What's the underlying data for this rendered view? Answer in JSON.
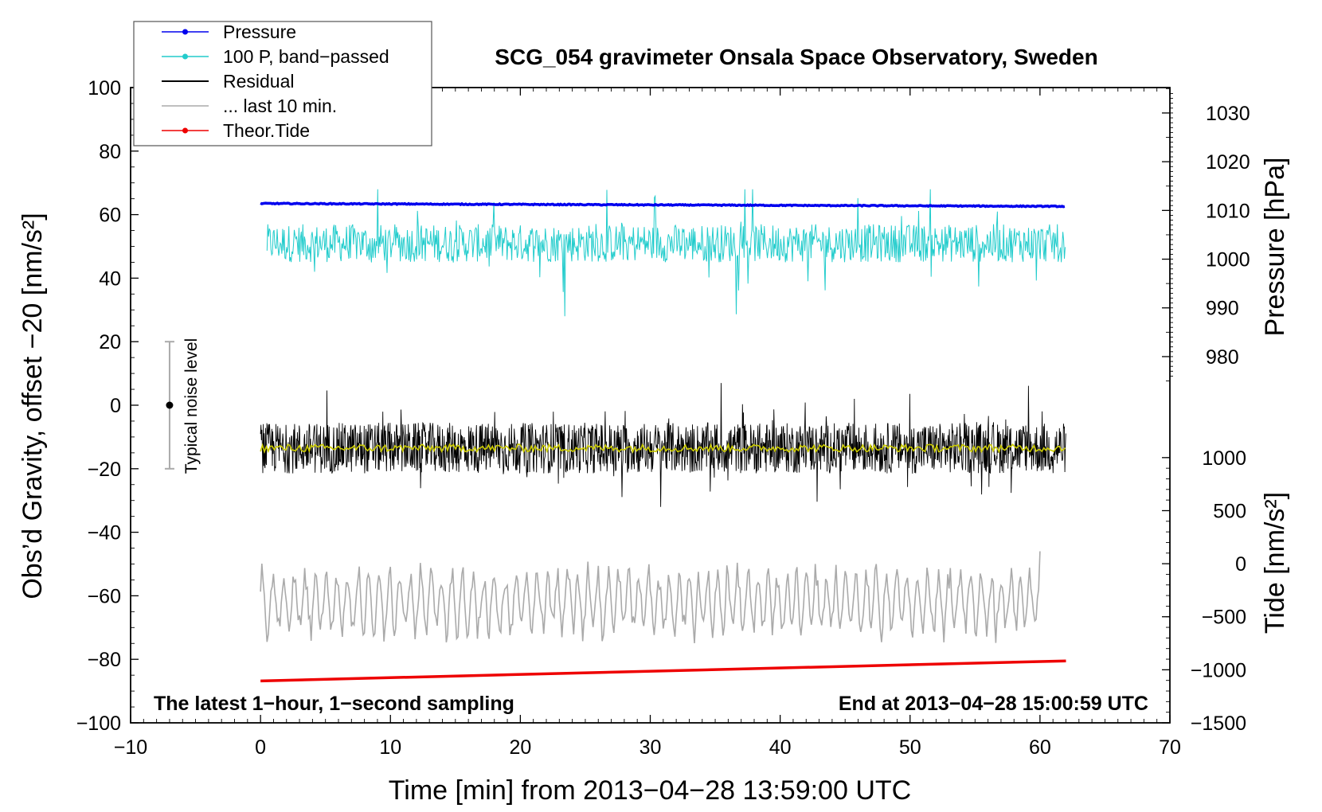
{
  "chart_data": {
    "type": "line",
    "title": "SCG_054 gravimeter Onsala Space Observatory, Sweden",
    "xlabel": "Time [min] from 2013−04−28 13:59:00 UTC",
    "ylabel_left": "Obs’d Gravity, offset −20 [nm/s²]",
    "ylabel_right_pressure": "Pressure [hPa]",
    "ylabel_right_tide": "Tide [nm/s²]",
    "xlim": [
      -10,
      70
    ],
    "ylim": [
      -100,
      100
    ],
    "x_ticks": [
      "−10",
      "0",
      "10",
      "20",
      "30",
      "40",
      "50",
      "60",
      "70"
    ],
    "x_tick_values": [
      -10,
      0,
      10,
      20,
      30,
      40,
      50,
      60,
      70
    ],
    "y_ticks": [
      "100",
      "80",
      "60",
      "40",
      "20",
      "0",
      "−20",
      "−40",
      "−60",
      "−80",
      "−100"
    ],
    "y_tick_values": [
      100,
      80,
      60,
      40,
      20,
      0,
      -20,
      -40,
      -60,
      -80,
      -100
    ],
    "pressure_ticks": [
      "1030",
      "1020",
      "1010",
      "1000",
      "990",
      "980"
    ],
    "pressure_tick_values": [
      1030,
      1020,
      1010,
      1000,
      990,
      980
    ],
    "pressure_axis_map": {
      "p1": 1030,
      "y1": 92,
      "p2": 980,
      "y2": 15.3
    },
    "tide_ticks": [
      "1000",
      "500",
      "0",
      "−500",
      "−1000",
      "−1500"
    ],
    "tide_tick_values": [
      1000,
      500,
      0,
      -500,
      -1000,
      -1500
    ],
    "tide_axis_map": {
      "t1": 1000,
      "y1": -16.5,
      "t2": -1500,
      "y2": -100
    },
    "legend": [
      {
        "name": "Pressure",
        "color": "#0000ee",
        "marker": true
      },
      {
        "name": "100 P, band−passed",
        "color": "#22cccc",
        "marker": true
      },
      {
        "name": "Residual",
        "color": "#000000",
        "marker": false
      },
      {
        "name": "... last 10 min.",
        "color": "#aaaaaa",
        "marker": false
      },
      {
        "name": "Theor.Tide",
        "color": "#ee0000",
        "marker": true
      }
    ],
    "legend_position": "top-left",
    "annotation_left": "The latest 1−hour, 1−second sampling",
    "annotation_right": "End at 2013−04−28 15:00:59 UTC",
    "noise_bar_label": "Typical noise level",
    "noise_bar": {
      "x": -7,
      "center": 0,
      "low": -20,
      "high": 20
    },
    "series": [
      {
        "name": "Pressure",
        "color": "#0000ee",
        "x_range": [
          0,
          62
        ],
        "y_start": 63.5,
        "y_end": 62.6,
        "noise": 0.3
      },
      {
        "name": "100 P, band−passed",
        "color": "#22cccc",
        "x_range": [
          0.5,
          62
        ],
        "y_center": 51,
        "y_min": 28,
        "y_max": 68
      },
      {
        "name": "Residual",
        "color": "#000000",
        "x_range": [
          0,
          62
        ],
        "y_center": -13.5,
        "y_min": -32,
        "y_max": 7
      },
      {
        "name": "Residual smoothed",
        "color": "#cccc00",
        "x_range": [
          0,
          62
        ],
        "y_center": -13.5,
        "amplitude": 1.2
      },
      {
        "name": "... last 10 min.",
        "color": "#aaaaaa",
        "x_range": [
          0,
          60
        ],
        "y_center": -62,
        "y_min": -80,
        "y_max": -46
      },
      {
        "name": "Theor.Tide",
        "color": "#ee0000",
        "x_range": [
          0,
          62
        ],
        "y_start": -86.8,
        "y_end": -80.5
      }
    ]
  }
}
